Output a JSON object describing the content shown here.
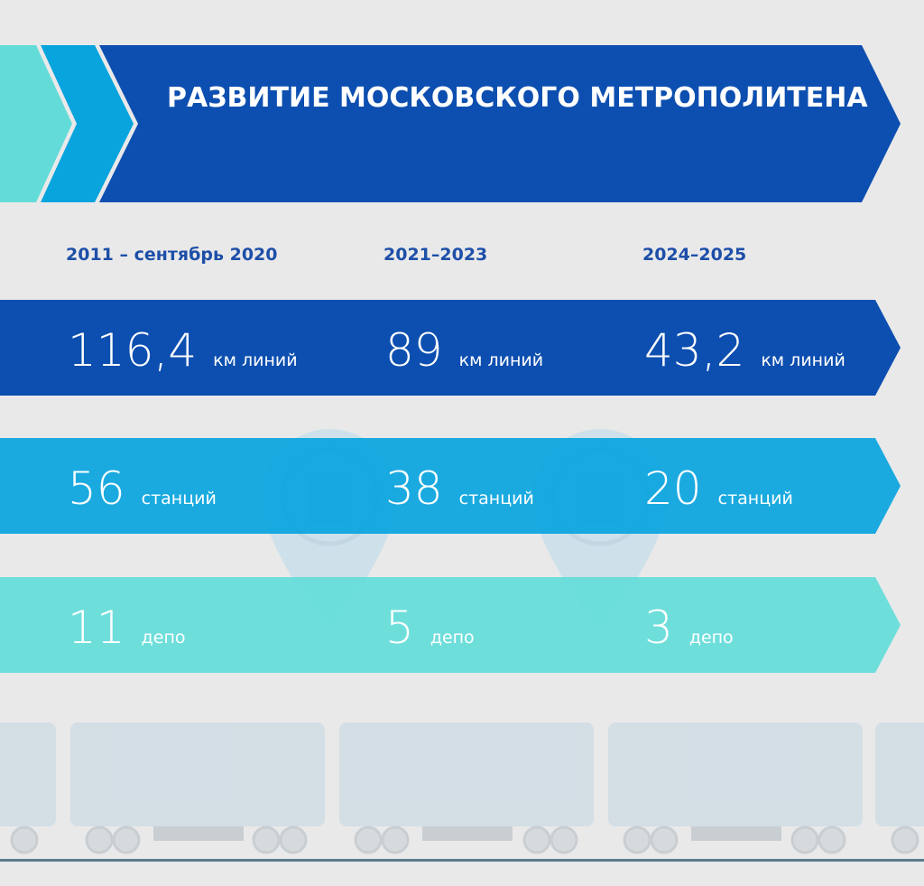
{
  "title": "РАЗВИТИЕ МОСКОВСКОГО МЕТРОПОЛИТЕНА",
  "periods": [
    "2011 – сентябрь 2020",
    "2021–2023",
    "2024–2025"
  ],
  "rows": [
    {
      "unit": "км линий",
      "values": [
        "116,4",
        "89",
        "43,2"
      ]
    },
    {
      "unit": "станций",
      "values": [
        "56",
        "38",
        "20"
      ]
    },
    {
      "unit": "депо",
      "values": [
        "11",
        "5",
        "3"
      ]
    }
  ]
}
